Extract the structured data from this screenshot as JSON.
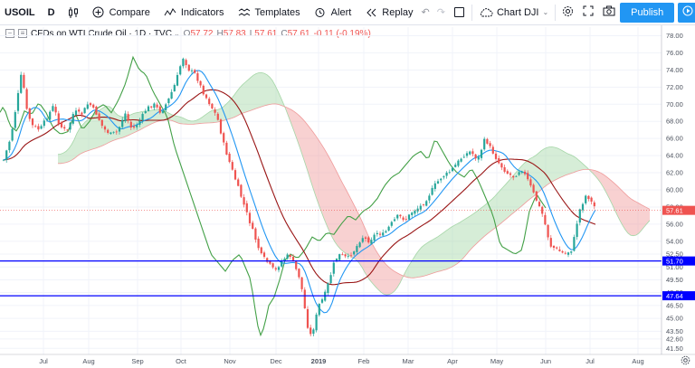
{
  "toolbar": {
    "symbol": "USOIL",
    "interval": "D",
    "compare": "Compare",
    "indicators": "Indicators",
    "templates": "Templates",
    "alert": "Alert",
    "replay": "Replay",
    "chart_name": "Chart DJI",
    "publish": "Publish"
  },
  "legend": {
    "title": "CFDs on WTI Crude Oil · 1D · TVC",
    "open_label": "O",
    "open": "57.72",
    "high_label": "H",
    "high": "57.83",
    "low_label": "L",
    "low": "57.61",
    "close_label": "C",
    "close": "57.61",
    "change": "-0.11 (-0.19%)"
  },
  "colors": {
    "up": "#26a69a",
    "down": "#ef5350",
    "tenkan": "#2196f3",
    "kijun": "#991515",
    "chikou": "#43a047",
    "cloud_bull": "#a5d6a7",
    "cloud_bear": "#ef9a9a",
    "hline": "#0000ff",
    "accent": "#2196f3"
  },
  "chart_data": {
    "type": "candlestick",
    "ylim": [
      41.0,
      79.0
    ],
    "y_ticks": [
      "78.00",
      "76.00",
      "74.00",
      "72.00",
      "70.00",
      "68.00",
      "66.00",
      "64.00",
      "62.00",
      "60.00",
      "58.00",
      "56.00",
      "54.00",
      "52.50",
      "51.00",
      "49.50",
      "48.00",
      "46.50",
      "45.00",
      "43.50",
      "42.60",
      "41.50"
    ],
    "x_ticks": [
      "Jul",
      "Aug",
      "Sep",
      "Oct",
      "Nov",
      "Dec",
      "2019",
      "Feb",
      "Mar",
      "Apr",
      "May",
      "Jun",
      "Jul",
      "Aug"
    ],
    "price_path": [
      [
        0,
        63.5
      ],
      [
        8,
        66.2
      ],
      [
        15,
        70.5
      ],
      [
        20,
        73.8
      ],
      [
        26,
        69.0
      ],
      [
        32,
        67.5
      ],
      [
        40,
        67.0
      ],
      [
        48,
        68.5
      ],
      [
        55,
        69.8
      ],
      [
        62,
        67.5
      ],
      [
        70,
        66.8
      ],
      [
        78,
        69.2
      ],
      [
        86,
        68.8
      ],
      [
        94,
        70.2
      ],
      [
        102,
        69.0
      ],
      [
        110,
        67.2
      ],
      [
        118,
        66.5
      ],
      [
        126,
        66.8
      ],
      [
        134,
        69.0
      ],
      [
        142,
        67.0
      ],
      [
        150,
        68.0
      ],
      [
        158,
        69.5
      ],
      [
        166,
        70.0
      ],
      [
        174,
        69.0
      ],
      [
        182,
        70.5
      ],
      [
        190,
        72.5
      ],
      [
        198,
        75.5
      ],
      [
        205,
        74.0
      ],
      [
        212,
        73.5
      ],
      [
        220,
        71.5
      ],
      [
        228,
        70.0
      ],
      [
        236,
        68.5
      ],
      [
        244,
        65.0
      ],
      [
        252,
        62.5
      ],
      [
        260,
        60.0
      ],
      [
        268,
        57.5
      ],
      [
        276,
        55.0
      ],
      [
        284,
        52.5
      ],
      [
        292,
        51.5
      ],
      [
        300,
        50.5
      ],
      [
        308,
        51.8
      ],
      [
        316,
        52.5
      ],
      [
        322,
        51.0
      ],
      [
        328,
        49.5
      ],
      [
        333,
        46.0
      ],
      [
        338,
        42.8
      ],
      [
        343,
        44.0
      ],
      [
        348,
        46.5
      ],
      [
        354,
        47.5
      ],
      [
        360,
        49.5
      ],
      [
        366,
        51.8
      ],
      [
        372,
        52.5
      ],
      [
        380,
        52.0
      ],
      [
        388,
        53.0
      ],
      [
        396,
        54.5
      ],
      [
        404,
        54.0
      ],
      [
        412,
        55.0
      ],
      [
        420,
        54.8
      ],
      [
        428,
        56.0
      ],
      [
        436,
        57.0
      ],
      [
        444,
        56.5
      ],
      [
        452,
        57.5
      ],
      [
        460,
        58.0
      ],
      [
        468,
        59.0
      ],
      [
        476,
        60.5
      ],
      [
        484,
        61.5
      ],
      [
        492,
        62.0
      ],
      [
        500,
        63.0
      ],
      [
        508,
        64.0
      ],
      [
        516,
        64.5
      ],
      [
        524,
        63.5
      ],
      [
        532,
        66.0
      ],
      [
        540,
        64.5
      ],
      [
        548,
        63.0
      ],
      [
        556,
        62.0
      ],
      [
        564,
        61.5
      ],
      [
        572,
        62.5
      ],
      [
        580,
        61.0
      ],
      [
        588,
        59.0
      ],
      [
        596,
        57.0
      ],
      [
        604,
        53.5
      ],
      [
        612,
        53.0
      ],
      [
        620,
        52.5
      ],
      [
        628,
        53.0
      ],
      [
        636,
        57.5
      ],
      [
        644,
        59.5
      ],
      [
        650,
        58.5
      ],
      [
        656,
        57.6
      ]
    ],
    "hlines": [
      51.7,
      47.64
    ],
    "price_labels": [
      "57.61",
      "51.70",
      "47.64"
    ],
    "indicators": [
      "Ichimoku Cloud"
    ]
  }
}
